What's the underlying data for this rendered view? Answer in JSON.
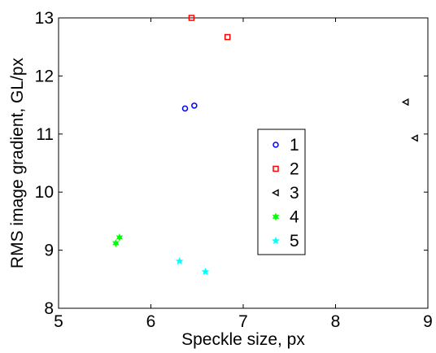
{
  "chart_data": {
    "type": "scatter",
    "title": "",
    "xlabel": "Speckle size, px",
    "ylabel": "RMS image gradient, GL/px",
    "xlim": [
      5,
      9
    ],
    "ylim": [
      8,
      13
    ],
    "x_ticks": [
      5,
      6,
      7,
      8,
      9
    ],
    "y_ticks": [
      8,
      9,
      10,
      11,
      12,
      13
    ],
    "grid": false,
    "legend_position": "center-right",
    "series": [
      {
        "name": "1",
        "marker": "circle",
        "color": "#0000ff",
        "points": [
          [
            6.37,
            11.44
          ],
          [
            6.47,
            11.49
          ]
        ]
      },
      {
        "name": "2",
        "marker": "square",
        "color": "#ff0000",
        "points": [
          [
            6.44,
            13.0
          ],
          [
            6.83,
            12.67
          ]
        ]
      },
      {
        "name": "3",
        "marker": "triangle-left",
        "color": "#000000",
        "points": [
          [
            8.76,
            11.55
          ],
          [
            8.86,
            10.93
          ]
        ]
      },
      {
        "name": "4",
        "marker": "hexagram",
        "color": "#00ff00",
        "points": [
          [
            5.62,
            9.12
          ],
          [
            5.66,
            9.22
          ]
        ]
      },
      {
        "name": "5",
        "marker": "pentagram",
        "color": "#00ffff",
        "points": [
          [
            6.31,
            8.81
          ],
          [
            6.59,
            8.63
          ]
        ]
      }
    ]
  }
}
